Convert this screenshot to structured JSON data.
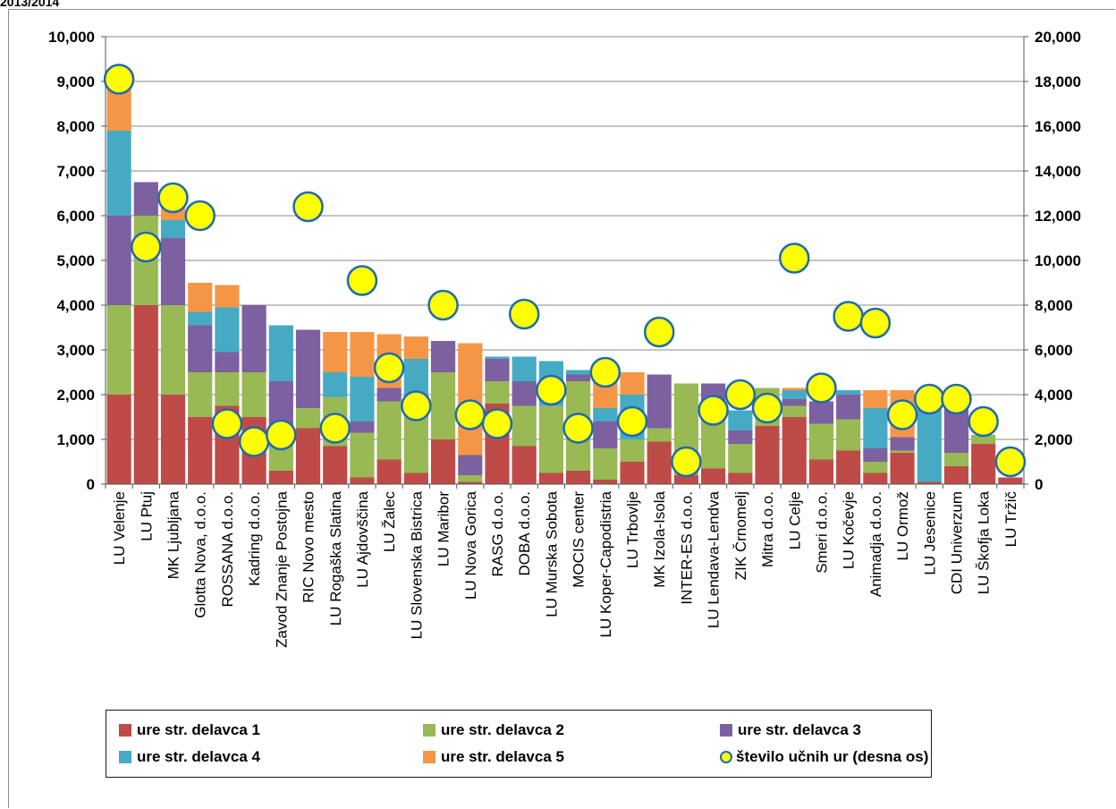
{
  "title": "2013/2014",
  "chart_data": {
    "type": "bar",
    "stacked": true,
    "title": "",
    "xlabel": "",
    "ylabel": "",
    "ylim": [
      0,
      10000
    ],
    "y2lim": [
      0,
      20000
    ],
    "y_ticks": [
      "0",
      "1,000",
      "2,000",
      "3,000",
      "4,000",
      "5,000",
      "6,000",
      "7,000",
      "8,000",
      "9,000",
      "10,000"
    ],
    "y2_ticks": [
      "0",
      "2,000",
      "4,000",
      "6,000",
      "8,000",
      "10,000",
      "12,000",
      "14,000",
      "16,000",
      "18,000",
      "20,000"
    ],
    "grid": true,
    "legend_position": "bottom",
    "categories": [
      "LU Velenje",
      "LU Ptuj",
      "MK Ljubljana",
      "Glotta Nova, d.o.o.",
      "ROSSANA d.o.o.",
      "Kadring d.o.o.",
      "Zavod Znanje Postojna",
      "RIC Novo mesto",
      "LU Rogaška Slatina",
      "LU Ajdovščina",
      "LU Žalec",
      "LU Slovenska Bistrica",
      "LU Maribor",
      "LU Nova Gorica",
      "RASG d.o.o.",
      "DOBA d.o.o.",
      "LU Murska Sobota",
      "MOCIS center",
      "LU Koper-Capodistria",
      "LU Trbovlje",
      "MK Izola-Isola",
      "INTER-ES d.o.o.",
      "LU Lendava-Lendva",
      "ZIK Črnomelj",
      "Mitra d.o.o.",
      "LU Celje",
      "Smeri d.o.o.",
      "LU Kočevje",
      "Animadja d.o.o.",
      "LU Ormož",
      "LU Jesenice",
      "CDI Univerzum",
      "LU Škofja Loka",
      "LU Tržič"
    ],
    "series": [
      {
        "name": "ure str. delavca 1",
        "color": "#be4b48",
        "axis": "left",
        "values": [
          2000,
          4000,
          2000,
          1500,
          1750,
          1500,
          300,
          1250,
          850,
          150,
          550,
          250,
          1000,
          50,
          1800,
          850,
          250,
          300,
          100,
          500,
          950,
          200,
          350,
          250,
          1300,
          1500,
          550,
          750,
          250,
          700,
          50,
          400,
          900,
          150
        ]
      },
      {
        "name": "ure str. delavca 2",
        "color": "#98b954",
        "axis": "left",
        "values": [
          2000,
          2000,
          2000,
          1000,
          750,
          1000,
          1000,
          450,
          1100,
          1000,
          1300,
          1500,
          1500,
          150,
          500,
          900,
          1500,
          2000,
          700,
          500,
          300,
          2050,
          1250,
          650,
          850,
          250,
          800,
          700,
          250,
          50,
          0,
          300,
          200,
          0
        ]
      },
      {
        "name": "ure str. delavca 3",
        "color": "#7d60a0",
        "axis": "left",
        "values": [
          2000,
          750,
          1500,
          1050,
          450,
          1500,
          1000,
          1750,
          0,
          250,
          300,
          0,
          700,
          450,
          500,
          550,
          0,
          150,
          600,
          0,
          1200,
          0,
          650,
          300,
          0,
          150,
          500,
          550,
          300,
          300,
          0,
          1000,
          0,
          0
        ]
      },
      {
        "name": "ure str. delavca 4",
        "color": "#46aac5",
        "axis": "left",
        "values": [
          1900,
          0,
          400,
          300,
          1000,
          0,
          1250,
          0,
          550,
          1000,
          0,
          1050,
          0,
          0,
          50,
          550,
          1000,
          100,
          300,
          1000,
          0,
          0,
          0,
          450,
          0,
          200,
          0,
          100,
          900,
          0,
          1800,
          0,
          0,
          0
        ]
      },
      {
        "name": "ure str. delavca 5",
        "color": "#f59647",
        "axis": "left",
        "values": [
          1100,
          0,
          350,
          650,
          500,
          0,
          0,
          0,
          900,
          1000,
          1200,
          500,
          0,
          2500,
          0,
          0,
          0,
          0,
          800,
          500,
          0,
          0,
          0,
          0,
          0,
          50,
          0,
          0,
          400,
          1050,
          0,
          0,
          0,
          0
        ]
      },
      {
        "name": "število učnih ur (desna os)",
        "color": "#ffff00",
        "axis": "right",
        "marker": "circle",
        "values": [
          18100,
          10600,
          12800,
          12000,
          2700,
          1900,
          2200,
          12400,
          2500,
          9100,
          5200,
          3500,
          8000,
          3100,
          2700,
          7600,
          4200,
          2500,
          5000,
          2800,
          6800,
          1000,
          3300,
          4000,
          3400,
          10100,
          4300,
          7500,
          7200,
          3100,
          3800,
          3800,
          2800,
          1000
        ]
      }
    ]
  }
}
